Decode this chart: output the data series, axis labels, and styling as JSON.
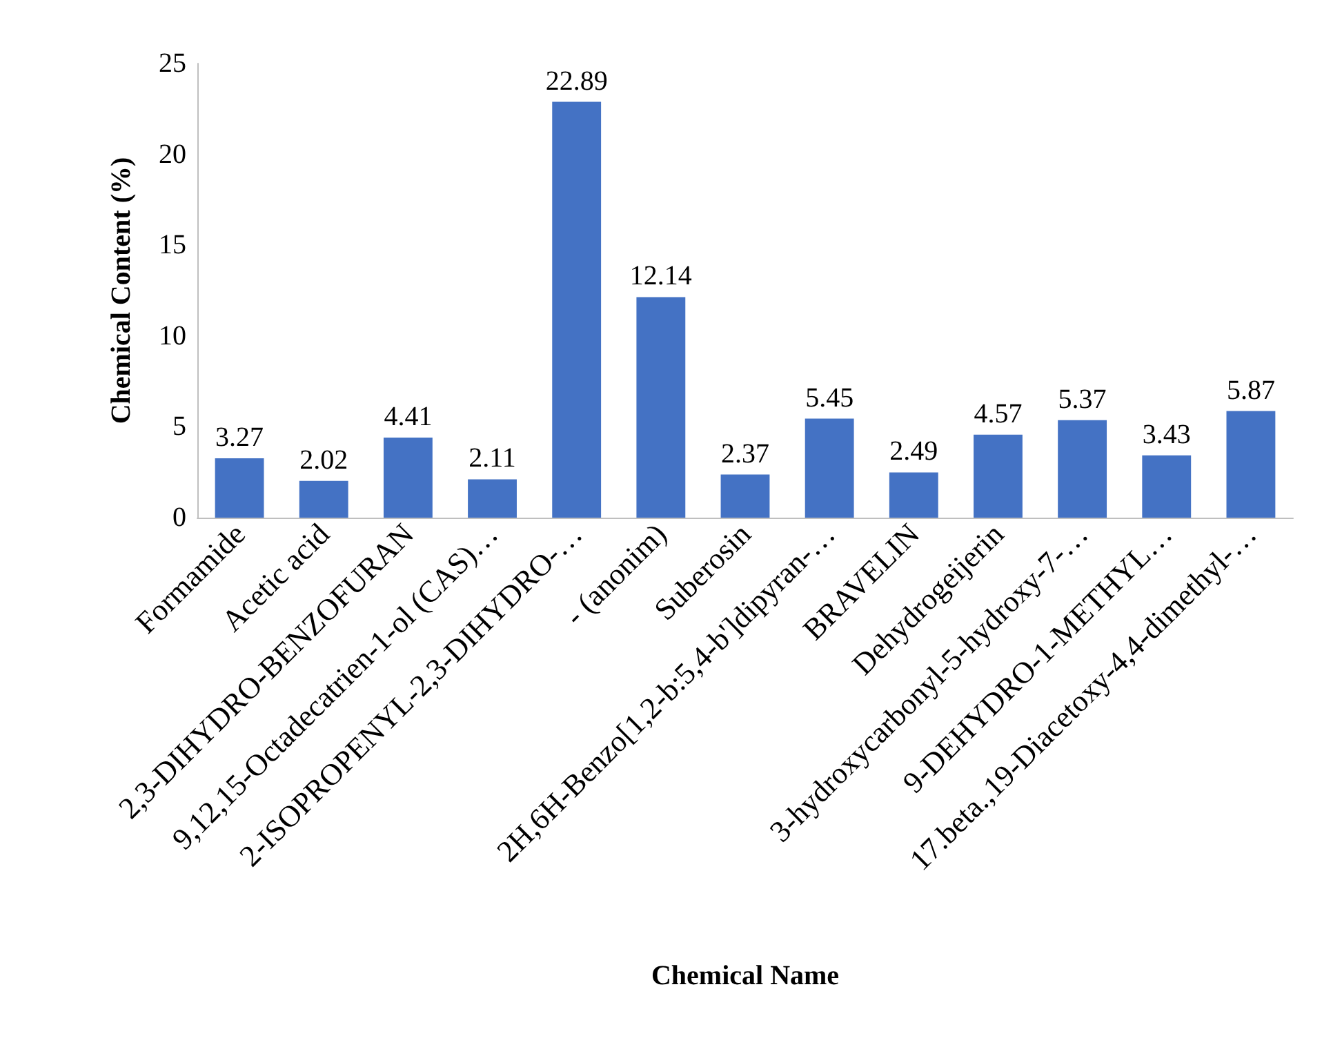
{
  "chart_data": {
    "type": "bar",
    "xlabel": "Chemical Name",
    "ylabel": "Chemical Content (%)",
    "categories": [
      "Formamide",
      "Acetic acid",
      "2,3-DIHYDRO-BENZOFURAN",
      "9,12,15-Octadecatrien-1-ol (CAS)…",
      "2-ISOPROPENYL-2,3-DIHYDRO-…",
      "- (anonim)",
      "Suberosin",
      "2H,6H-Benzo[1,2-b:5,4-b']dipyran-…",
      "BRAVELIN",
      "Dehydrogeijerin",
      "3-hydroxycarbonyl-5-hydroxy-7-…",
      "9-DEHYDRO-1-METHYL…",
      "17.beta.,19-Diacetoxy-4,4-dimethyl-…"
    ],
    "values": [
      3.27,
      2.02,
      4.41,
      2.11,
      22.89,
      12.14,
      2.37,
      5.45,
      2.49,
      4.57,
      5.37,
      3.43,
      5.87
    ],
    "color": "#4472c4",
    "ylim": [
      0,
      25
    ],
    "yticks": [
      0,
      5,
      10,
      15,
      20,
      25
    ],
    "grid": false,
    "data_labels": true
  }
}
